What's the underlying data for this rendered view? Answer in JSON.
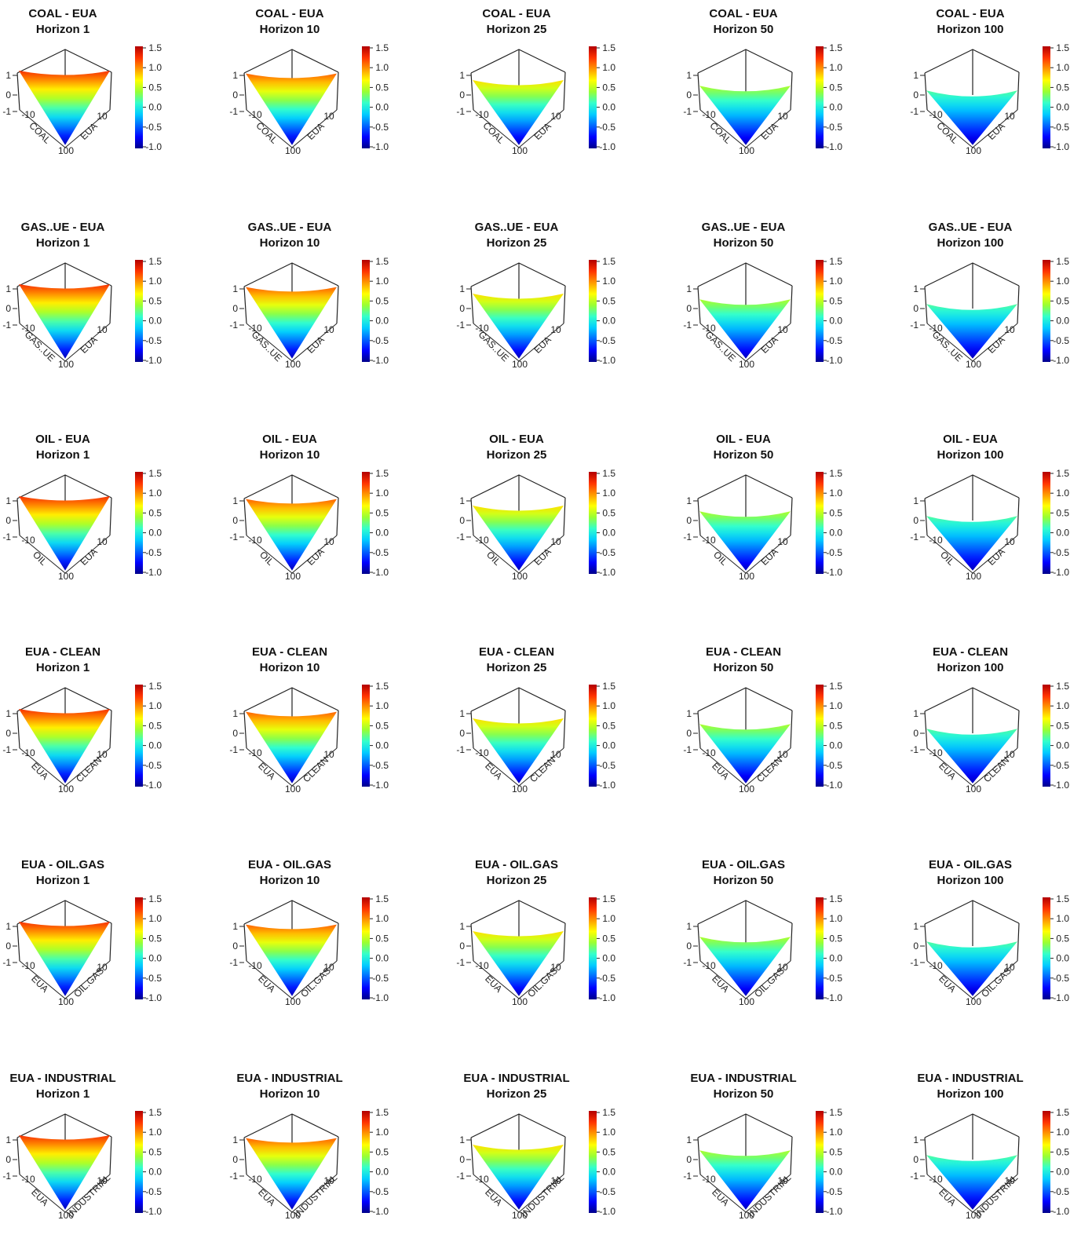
{
  "chart_data": {
    "type": "surface-grid",
    "rows": [
      "COAL - EUA",
      "GAS..UE - EUA",
      "OIL - EUA",
      "EUA - CLEAN",
      "EUA - OIL.GAS",
      "EUA - INDUSTRIAL"
    ],
    "horizons": [
      "1",
      "10",
      "25",
      "50",
      "100"
    ],
    "horizon_label": "Horizon",
    "left_axis_labels": [
      [
        "COAL",
        "EUA"
      ],
      [
        "GAS..UE",
        "EUA"
      ],
      [
        "OIL",
        "EUA"
      ],
      [
        "EUA",
        "CLEAN"
      ],
      [
        "EUA",
        "OIL.GAS"
      ],
      [
        "EUA",
        "INDUSTRIAL"
      ]
    ],
    "z_ticks": [
      "1",
      "0",
      "-1"
    ],
    "x_tick_low": "-10",
    "x_tick_high": "10",
    "front_tick": "100",
    "colorbar": {
      "ticks": [
        "1.5",
        "1.0",
        "0.5",
        "0.0",
        "-0.5",
        "-1.0"
      ],
      "range": [
        -1.0,
        1.5
      ],
      "colors": [
        "#00008b",
        "#0000ff",
        "#0066ff",
        "#00ccff",
        "#33ffcc",
        "#99ff33",
        "#ffff00",
        "#ff9900",
        "#ff3300",
        "#b20000"
      ]
    },
    "surface_edge_z": {
      "1": 1.25,
      "10": 1.1,
      "25": 0.75,
      "50": 0.45,
      "100": 0.2
    },
    "surface_center_z": -0.9,
    "grid": false,
    "legend": "right"
  }
}
